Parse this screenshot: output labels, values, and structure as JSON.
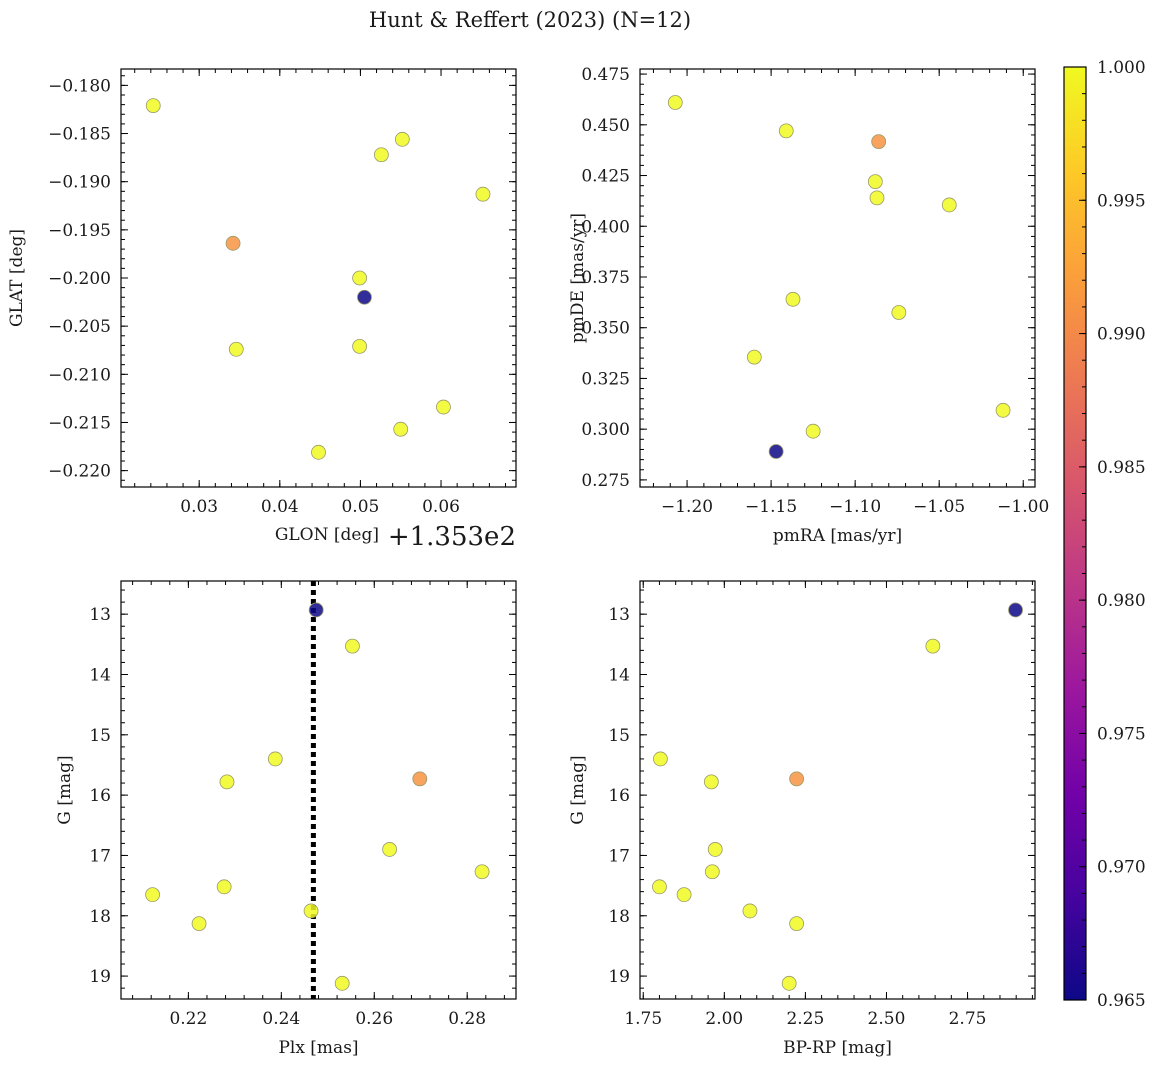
{
  "title": "Hunt & Reffert (2023) (N=12)",
  "colors": {
    "axis": "#000000",
    "marker_edge": "#9a9a6a",
    "reference_line": "#000000",
    "colormap": [
      "#0d0887",
      "#46039f",
      "#7201a8",
      "#9c179e",
      "#bd3786",
      "#d8576b",
      "#ed7953",
      "#fb9f3a",
      "#fdca26",
      "#f0f921"
    ]
  },
  "colorbar": {
    "label": "",
    "min": 0.965,
    "max": 1.0,
    "ticks": [
      0.965,
      0.97,
      0.975,
      0.98,
      0.985,
      0.99,
      0.995,
      1.0
    ],
    "tick_labels": [
      "0.965",
      "0.970",
      "0.975",
      "0.980",
      "0.985",
      "0.990",
      "0.995",
      "1.000"
    ]
  },
  "chart_data": [
    {
      "type": "scatter",
      "id": "glon-glat",
      "xlabel": "GLON [deg]",
      "ylabel": "GLAT [deg]",
      "offset_label": "+1.353e2",
      "xlim": [
        0.0203,
        0.0693
      ],
      "ylim": [
        -0.2217,
        -0.1783
      ],
      "xticks": [
        0.03,
        0.04,
        0.05,
        0.06
      ],
      "xtick_labels": [
        "0.03",
        "0.04",
        "0.05",
        "0.06"
      ],
      "yticks": [
        -0.22,
        -0.215,
        -0.21,
        -0.205,
        -0.2,
        -0.195,
        -0.19,
        -0.185,
        -0.18
      ],
      "ytick_labels": [
        "−0.220",
        "−0.215",
        "−0.210",
        "−0.205",
        "−0.200",
        "−0.195",
        "−0.190",
        "−0.185",
        "−0.180"
      ],
      "invert_y": false,
      "x": [
        0.0243,
        0.0342,
        0.0346,
        0.0448,
        0.0499,
        0.0499,
        0.0505,
        0.0526,
        0.055,
        0.0552,
        0.0603,
        0.0652
      ],
      "y": [
        -0.1821,
        -0.1964,
        -0.2074,
        -0.2181,
        -0.2,
        -0.2071,
        -0.202,
        -0.1872,
        -0.2157,
        -0.1856,
        -0.2134,
        -0.1913
      ],
      "c": [
        1.0,
        0.991,
        1.0,
        1.0,
        1.0,
        1.0,
        0.965,
        1.0,
        1.0,
        1.0,
        1.0,
        1.0
      ]
    },
    {
      "type": "scatter",
      "id": "pmra-pmde",
      "xlabel": "pmRA [mas/yr]",
      "ylabel": "pmDE [mas/yr]",
      "xlim": [
        -1.228,
        -0.993
      ],
      "ylim": [
        0.2715,
        0.4775
      ],
      "xticks": [
        -1.2,
        -1.15,
        -1.1,
        -1.05,
        -1.0
      ],
      "xtick_labels": [
        "−1.20",
        "−1.15",
        "−1.10",
        "−1.05",
        "−1.00"
      ],
      "yticks": [
        0.275,
        0.3,
        0.325,
        0.35,
        0.375,
        0.4,
        0.425,
        0.45,
        0.475
      ],
      "ytick_labels": [
        "0.275",
        "0.300",
        "0.325",
        "0.350",
        "0.375",
        "0.400",
        "0.425",
        "0.450",
        "0.475"
      ],
      "invert_y": false,
      "x": [
        -1.207,
        -1.141,
        -1.086,
        -1.088,
        -1.087,
        -1.044,
        -1.137,
        -1.074,
        -1.16,
        -1.012,
        -1.125,
        -1.147
      ],
      "y": [
        0.461,
        0.447,
        0.4417,
        0.422,
        0.414,
        0.4105,
        0.364,
        0.3575,
        0.3355,
        0.3093,
        0.299,
        0.289
      ],
      "c": [
        1.0,
        1.0,
        0.991,
        1.0,
        1.0,
        1.0,
        1.0,
        1.0,
        1.0,
        1.0,
        1.0,
        0.965
      ]
    },
    {
      "type": "scatter",
      "id": "plx-g",
      "xlabel": "Plx [mas]",
      "ylabel": "G [mag]",
      "xlim": [
        0.2055,
        0.2905
      ],
      "ylim": [
        12.45,
        19.38
      ],
      "xticks": [
        0.22,
        0.24,
        0.26,
        0.28
      ],
      "xtick_labels": [
        "0.22",
        "0.24",
        "0.26",
        "0.28"
      ],
      "yticks": [
        13,
        14,
        15,
        16,
        17,
        18,
        19
      ],
      "ytick_labels": [
        "13",
        "14",
        "15",
        "16",
        "17",
        "18",
        "19"
      ],
      "invert_y": true,
      "vline": 0.2469,
      "x": [
        0.2475,
        0.2553,
        0.2698,
        0.2387,
        0.2283,
        0.2633,
        0.2832,
        0.2123,
        0.2277,
        0.2464,
        0.2223,
        0.2531
      ],
      "y": [
        12.93,
        13.53,
        15.73,
        15.4,
        15.78,
        16.9,
        17.27,
        17.65,
        17.52,
        17.92,
        18.13,
        19.12
      ],
      "c": [
        0.965,
        1.0,
        0.991,
        1.0,
        1.0,
        1.0,
        1.0,
        1.0,
        1.0,
        1.0,
        1.0,
        1.0
      ]
    },
    {
      "type": "scatter",
      "id": "bprp-g",
      "xlabel": "BP-RP [mag]",
      "ylabel": "G [mag]",
      "xlim": [
        1.74,
        2.958
      ],
      "ylim": [
        12.45,
        19.38
      ],
      "xticks": [
        1.75,
        2.0,
        2.25,
        2.5,
        2.75
      ],
      "xtick_labels": [
        "1.75",
        "2.00",
        "2.25",
        "2.50",
        "2.75"
      ],
      "yticks": [
        13,
        14,
        15,
        16,
        17,
        18,
        19
      ],
      "ytick_labels": [
        "13",
        "14",
        "15",
        "16",
        "17",
        "18",
        "19"
      ],
      "invert_y": true,
      "x": [
        2.898,
        2.643,
        2.223,
        1.803,
        1.96,
        1.972,
        1.963,
        1.876,
        1.8,
        2.079,
        2.223,
        2.2
      ],
      "y": [
        12.93,
        13.53,
        15.73,
        15.4,
        15.78,
        16.9,
        17.27,
        17.65,
        17.52,
        17.92,
        18.13,
        19.12
      ],
      "c": [
        0.965,
        1.0,
        0.991,
        1.0,
        1.0,
        1.0,
        1.0,
        1.0,
        1.0,
        1.0,
        1.0,
        1.0
      ]
    }
  ]
}
